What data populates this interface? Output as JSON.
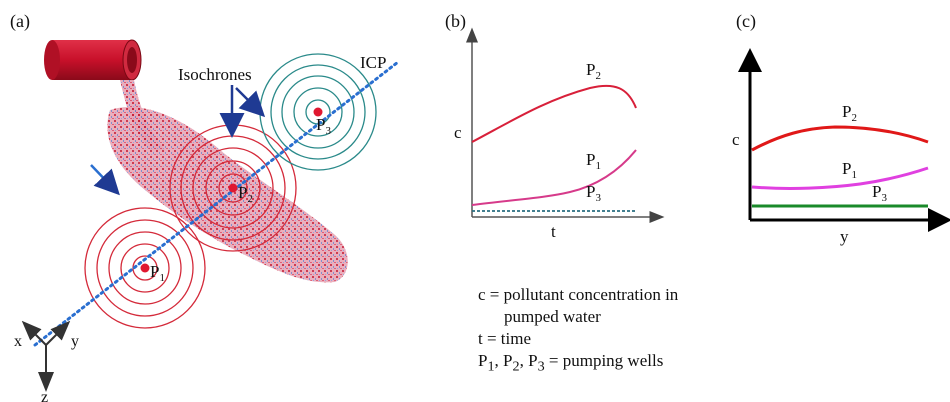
{
  "panel_a": {
    "label": "(a)",
    "isochrones_label": "Isochrones",
    "icp_label": "ICP",
    "wells": [
      {
        "base": "P",
        "sub": "1"
      },
      {
        "base": "P",
        "sub": "2"
      },
      {
        "base": "P",
        "sub": "3"
      }
    ],
    "axes": {
      "x": "x",
      "y": "y",
      "z": "z"
    },
    "colors": {
      "plume_red": "#d8203a",
      "rings_red": "#d42a3a",
      "rings_teal": "#2a8a8a",
      "icp_line": "#2a6fd0",
      "arrow": "#1f3a93"
    }
  },
  "panel_b": {
    "label": "(b)",
    "ylabel": "c",
    "xlabel": "t",
    "series_labels": [
      {
        "base": "P",
        "sub": "2"
      },
      {
        "base": "P",
        "sub": "1"
      },
      {
        "base": "P",
        "sub": "3"
      }
    ]
  },
  "panel_c": {
    "label": "(c)",
    "ylabel": "c",
    "xlabel": "y",
    "series_labels": [
      {
        "base": "P",
        "sub": "2"
      },
      {
        "base": "P",
        "sub": "1"
      },
      {
        "base": "P",
        "sub": "3"
      }
    ]
  },
  "legend": {
    "line1": "c = pollutant concentration in",
    "line2": "pumped water",
    "line3": "t = time",
    "line4_parts": [
      {
        "base": "P",
        "sub": "1"
      },
      {
        "sep": ", "
      },
      {
        "base": "P",
        "sub": "2"
      },
      {
        "sep": ", "
      },
      {
        "base": "P",
        "sub": "3"
      }
    ],
    "line4_tail": " = pumping wells"
  },
  "chart_data": [
    {
      "type": "line",
      "ylabel": "c",
      "xlabel": "t",
      "series": [
        {
          "name": "P2",
          "color": "#d8203a"
        },
        {
          "name": "P1",
          "color": "#d63a8a"
        },
        {
          "name": "P3",
          "color": "#2a6f80"
        }
      ]
    },
    {
      "type": "line",
      "ylabel": "c",
      "xlabel": "y",
      "series": [
        {
          "name": "P2",
          "color": "#e01818"
        },
        {
          "name": "P1",
          "color": "#e040e0"
        },
        {
          "name": "P3",
          "color": "#1a8a2a"
        }
      ]
    }
  ]
}
